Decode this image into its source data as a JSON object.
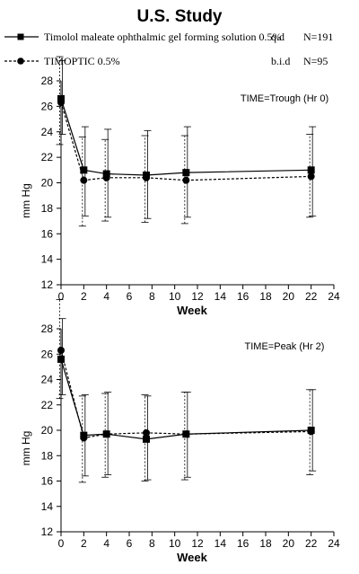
{
  "title": "U.S. Study",
  "legend": [
    {
      "label": "Timolol maleate ophthalmic gel forming solution  0.5%",
      "dosing": "q.d",
      "n": "N=191",
      "marker": "square",
      "line": "solid"
    },
    {
      "label": "TIMOPTIC 0.5%",
      "dosing": "b.i.d",
      "n": "N=95",
      "marker": "circle",
      "line": "dashed"
    }
  ],
  "chart_data": [
    {
      "type": "line",
      "annotation": "TIME=Trough (Hr 0)",
      "xlabel": "Week",
      "ylabel": "mm Hg",
      "xlim": [
        0,
        24
      ],
      "ylim": [
        12,
        28
      ],
      "x_ticks": [
        0,
        2,
        4,
        6,
        8,
        10,
        12,
        14,
        16,
        18,
        20,
        22,
        24
      ],
      "y_ticks": [
        12,
        14,
        16,
        18,
        20,
        22,
        24,
        26,
        28
      ],
      "series": [
        {
          "name": "Timolol maleate ophthalmic gel forming solution  0.5%",
          "marker": "square",
          "line": "solid",
          "x": [
            0,
            2,
            4,
            7.5,
            11,
            22
          ],
          "y": [
            26.6,
            21.0,
            20.7,
            20.6,
            20.8,
            21.0
          ],
          "err_low": [
            23.8,
            17.4,
            17.3,
            17.2,
            17.3,
            17.4
          ],
          "err_high": [
            29.6,
            24.4,
            24.2,
            24.1,
            24.4,
            24.4
          ]
        },
        {
          "name": "TIMOPTIC 0.5%",
          "marker": "circle",
          "line": "dashed",
          "x": [
            0,
            2,
            4,
            7.5,
            11,
            22
          ],
          "y": [
            26.3,
            20.2,
            20.4,
            20.4,
            20.2,
            20.5
          ],
          "err_low": [
            23.0,
            16.6,
            17.0,
            16.9,
            16.8,
            17.3
          ],
          "err_high": [
            29.9,
            23.6,
            23.4,
            23.7,
            23.7,
            23.8
          ]
        }
      ]
    },
    {
      "type": "line",
      "annotation": "TIME=Peak (Hr 2)",
      "xlabel": "Week",
      "ylabel": "mm Hg",
      "xlim": [
        0,
        24
      ],
      "ylim": [
        12,
        28
      ],
      "x_ticks": [
        0,
        2,
        4,
        6,
        8,
        10,
        12,
        14,
        16,
        18,
        20,
        22,
        24
      ],
      "y_ticks": [
        12,
        14,
        16,
        18,
        20,
        22,
        24,
        26,
        28
      ],
      "series": [
        {
          "name": "Timolol maleate ophthalmic gel forming solution  0.5%",
          "marker": "square",
          "line": "solid",
          "x": [
            0,
            2,
            4,
            7.5,
            11,
            22
          ],
          "y": [
            25.6,
            19.6,
            19.7,
            19.3,
            19.7,
            20.0
          ],
          "err_low": [
            22.8,
            16.4,
            16.5,
            16.1,
            16.3,
            16.8
          ],
          "err_high": [
            28.8,
            22.8,
            23.0,
            22.7,
            23.0,
            23.2
          ]
        },
        {
          "name": "TIMOPTIC 0.5%",
          "marker": "circle",
          "line": "dashed",
          "x": [
            0,
            2,
            4,
            7.5,
            11,
            22
          ],
          "y": [
            26.3,
            19.4,
            19.7,
            19.8,
            19.7,
            19.9
          ],
          "err_low": [
            22.5,
            15.9,
            16.3,
            16.0,
            16.1,
            16.5
          ],
          "err_high": [
            30.3,
            22.7,
            22.9,
            22.8,
            23.0,
            23.2
          ]
        }
      ]
    }
  ]
}
